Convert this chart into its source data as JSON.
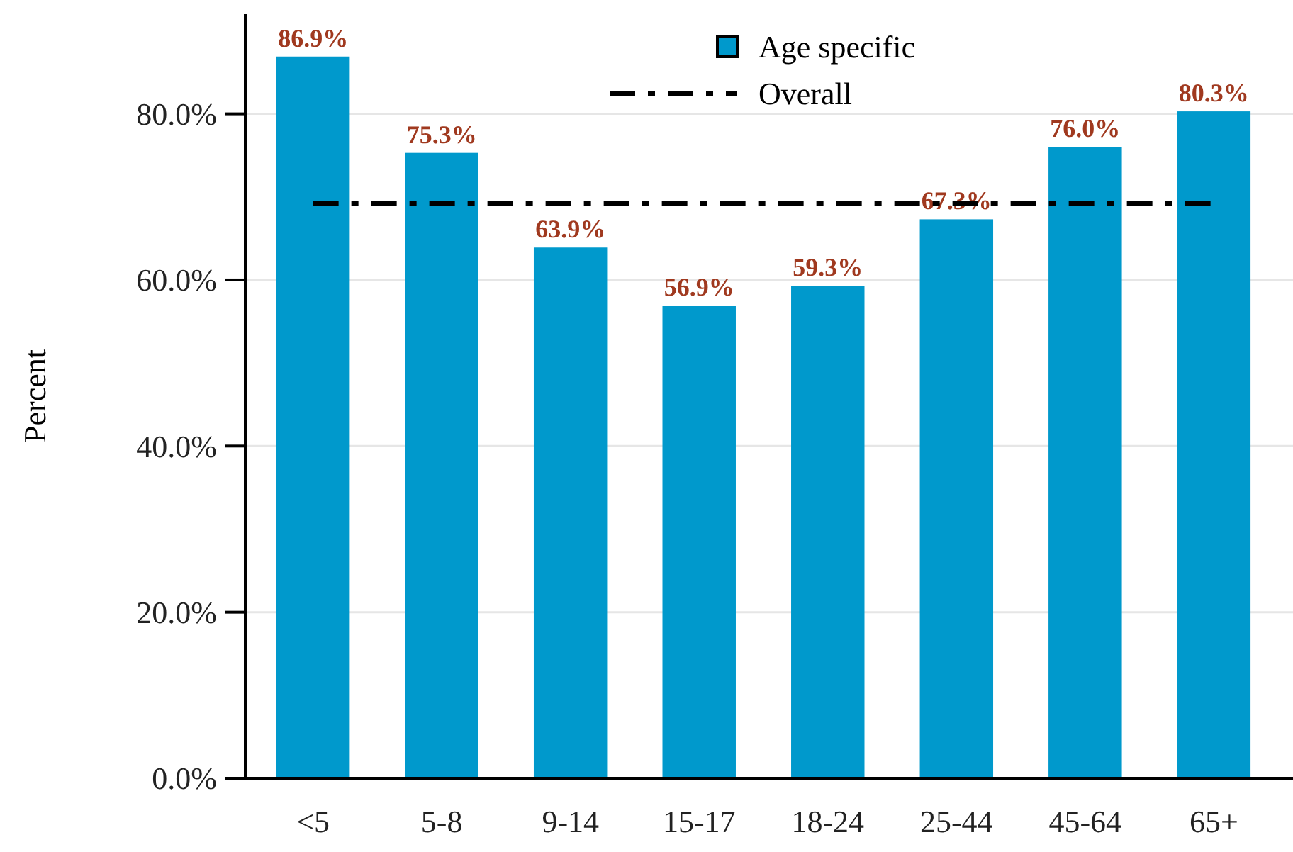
{
  "chart_data": {
    "type": "bar",
    "ylabel": "Percent",
    "categories": [
      "<5",
      "5-8",
      "9-14",
      "15-17",
      "18-24",
      "25-44",
      "45-64",
      "65+"
    ],
    "series": [
      {
        "name": "Age specific",
        "color": "#0099cc",
        "values": [
          86.9,
          75.3,
          63.9,
          56.9,
          59.3,
          67.3,
          76.0,
          80.3
        ],
        "value_labels": [
          "86.9%",
          "75.3%",
          "63.9%",
          "56.9%",
          "59.3%",
          "67.3%",
          "76.0%",
          "80.3%"
        ]
      },
      {
        "name": "Overall",
        "type": "line",
        "color": "#000000",
        "line_style": "dashed",
        "marker": "none",
        "values": [
          69.2,
          69.2,
          69.2,
          69.2,
          69.2,
          69.2,
          69.2,
          69.2
        ]
      }
    ],
    "ylim": [
      0,
      92
    ],
    "yticks": [
      {
        "value": 0,
        "label": "0.0%"
      },
      {
        "value": 20,
        "label": "20.0%"
      },
      {
        "value": 40,
        "label": "40.0%"
      },
      {
        "value": 60,
        "label": "60.0%"
      },
      {
        "value": 80,
        "label": "80.0%"
      }
    ],
    "grid": "y",
    "legend": "top"
  }
}
